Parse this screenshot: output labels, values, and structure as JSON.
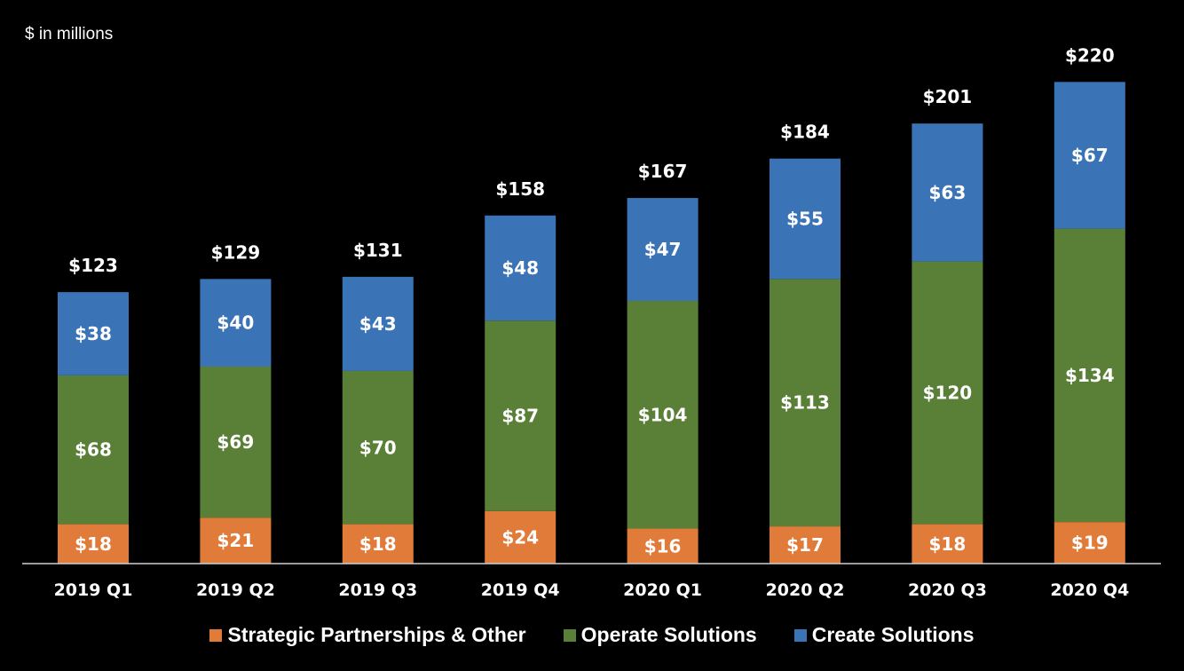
{
  "unit_note": "$ in millions",
  "chart_data": {
    "type": "bar",
    "stacked": true,
    "categories": [
      "2019 Q1",
      "2019 Q2",
      "2019 Q3",
      "2019 Q4",
      "2020 Q1",
      "2020 Q2",
      "2020 Q3",
      "2020 Q4"
    ],
    "series": [
      {
        "name": "Strategic Partnerships & Other",
        "color": "#e07b39",
        "values": [
          18,
          21,
          18,
          24,
          16,
          17,
          18,
          19
        ],
        "labels": [
          "$18",
          "$21",
          "$18",
          "$24",
          "$16",
          "$17",
          "$18",
          "$19"
        ]
      },
      {
        "name": "Operate Solutions",
        "color": "#5a7f37",
        "values": [
          68,
          69,
          70,
          87,
          104,
          113,
          120,
          134
        ],
        "labels": [
          "$68",
          "$69",
          "$70",
          "$87",
          "$104",
          "$113",
          "$120",
          "$134"
        ]
      },
      {
        "name": "Create Solutions",
        "color": "#3b74b6",
        "values": [
          38,
          40,
          43,
          48,
          47,
          55,
          63,
          67
        ],
        "labels": [
          "$38",
          "$40",
          "$43",
          "$48",
          "$47",
          "$55",
          "$63",
          "$67"
        ]
      }
    ],
    "totals": [
      123,
      129,
      131,
      158,
      167,
      184,
      201,
      220
    ],
    "total_labels": [
      "$123",
      "$129",
      "$131",
      "$158",
      "$167",
      "$184",
      "$201",
      "$220"
    ],
    "ylim": [
      0,
      225
    ],
    "legend_position": "bottom",
    "grid": false
  }
}
